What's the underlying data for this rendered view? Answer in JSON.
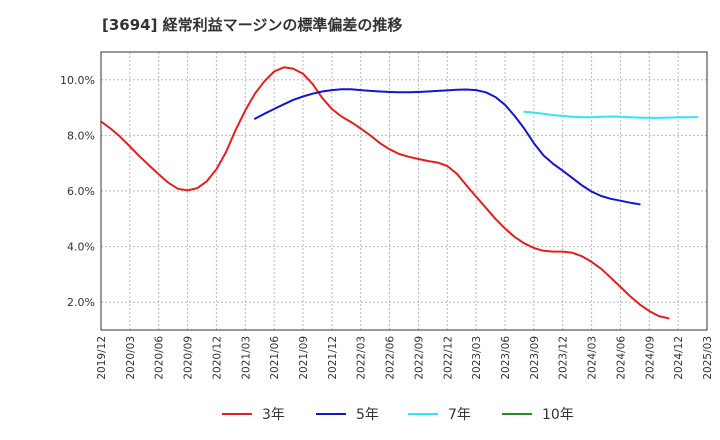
{
  "chart_data": {
    "type": "line",
    "title": "[3694]  経常利益マージンの標準偏差の推移",
    "xlabel": "",
    "ylabel": "",
    "x_ticks": [
      "2019/12",
      "2020/03",
      "2020/06",
      "2020/09",
      "2020/12",
      "2021/03",
      "2021/06",
      "2021/09",
      "2021/12",
      "2022/03",
      "2022/06",
      "2022/09",
      "2022/12",
      "2023/03",
      "2023/06",
      "2023/09",
      "2023/12",
      "2024/03",
      "2024/06",
      "2024/09",
      "2024/12",
      "2025/03"
    ],
    "y_ticks": [
      "2.0%",
      "4.0%",
      "6.0%",
      "8.0%",
      "10.0%"
    ],
    "ylim": [
      1.0,
      11.0
    ],
    "legend_position": "bottom",
    "grid": true,
    "series": [
      {
        "name": "3年",
        "color": "#e02020",
        "start_index": 0,
        "values": [
          8.5,
          8.25,
          7.95,
          7.6,
          7.25,
          6.92,
          6.6,
          6.3,
          6.08,
          6.02,
          6.1,
          6.35,
          6.78,
          7.4,
          8.2,
          8.9,
          9.5,
          9.95,
          10.3,
          10.45,
          10.4,
          10.22,
          9.85,
          9.35,
          8.95,
          8.68,
          8.48,
          8.25,
          8.0,
          7.72,
          7.5,
          7.33,
          7.23,
          7.15,
          7.08,
          7.02,
          6.9,
          6.62,
          6.2,
          5.8,
          5.4,
          5.0,
          4.65,
          4.35,
          4.12,
          3.95,
          3.85,
          3.82,
          3.82,
          3.78,
          3.65,
          3.45,
          3.2,
          2.88,
          2.55,
          2.22,
          1.92,
          1.68,
          1.5,
          1.42
        ]
      },
      {
        "name": "5年",
        "color": "#1515cc",
        "start_index": 16,
        "values": [
          8.6,
          8.78,
          8.95,
          9.12,
          9.28,
          9.4,
          9.5,
          9.58,
          9.63,
          9.66,
          9.66,
          9.63,
          9.6,
          9.58,
          9.56,
          9.55,
          9.55,
          9.56,
          9.58,
          9.6,
          9.62,
          9.64,
          9.65,
          9.63,
          9.55,
          9.38,
          9.1,
          8.7,
          8.25,
          7.72,
          7.28,
          6.98,
          6.73,
          6.47,
          6.2,
          5.98,
          5.82,
          5.72,
          5.65,
          5.58,
          5.52
        ]
      },
      {
        "name": "7年",
        "color": "#33e5f0",
        "start_index": 44,
        "values": [
          8.85,
          8.82,
          8.78,
          8.73,
          8.7,
          8.67,
          8.65,
          8.65,
          8.67,
          8.68,
          8.67,
          8.65,
          8.64,
          8.63,
          8.63,
          8.64,
          8.65,
          8.65,
          8.66
        ]
      },
      {
        "name": "10年",
        "color": "#2a8a2a",
        "start_index": 0,
        "values": []
      }
    ]
  }
}
